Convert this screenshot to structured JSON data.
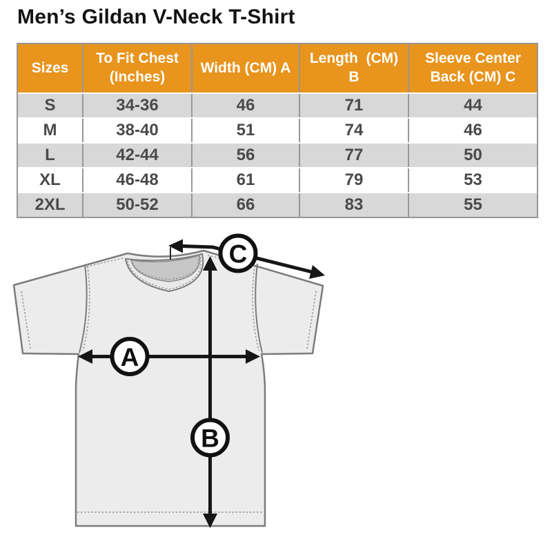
{
  "page": {
    "title": "Men’s Gildan V-Neck T-Shirt"
  },
  "table": {
    "columns": [
      {
        "label": "Sizes"
      },
      {
        "label": "To Fit Chest\n(Inches)"
      },
      {
        "label": "Width (CM) A"
      },
      {
        "label": "Length  (CM)\nB"
      },
      {
        "label": "Sleeve Center\nBack (CM) C"
      }
    ],
    "rows": [
      {
        "size": "S",
        "chest": "34-36",
        "width": "46",
        "length": "71",
        "sleeve": "44"
      },
      {
        "size": "M",
        "chest": "38-40",
        "width": "51",
        "length": "74",
        "sleeve": "46"
      },
      {
        "size": "L",
        "chest": "42-44",
        "width": "56",
        "length": "77",
        "sleeve": "50"
      },
      {
        "size": "XL",
        "chest": "46-48",
        "width": "61",
        "length": "79",
        "sleeve": "53"
      },
      {
        "size": "2XL",
        "chest": "50-52",
        "width": "66",
        "length": "83",
        "sleeve": "55"
      }
    ]
  },
  "diagram": {
    "labels": {
      "width": "A",
      "length": "B",
      "sleeve": "C"
    }
  },
  "colors": {
    "header_bg": "#E8941D",
    "header_text": "#FFFFFF",
    "row_alt_bg": "#D8D8D8",
    "body_text": "#4A4A4A",
    "shirt_fill": "#ECECEC",
    "shirt_outline": "#7B7B7B",
    "collar_inner": "#C7C7C7",
    "arrow": "#161616"
  }
}
